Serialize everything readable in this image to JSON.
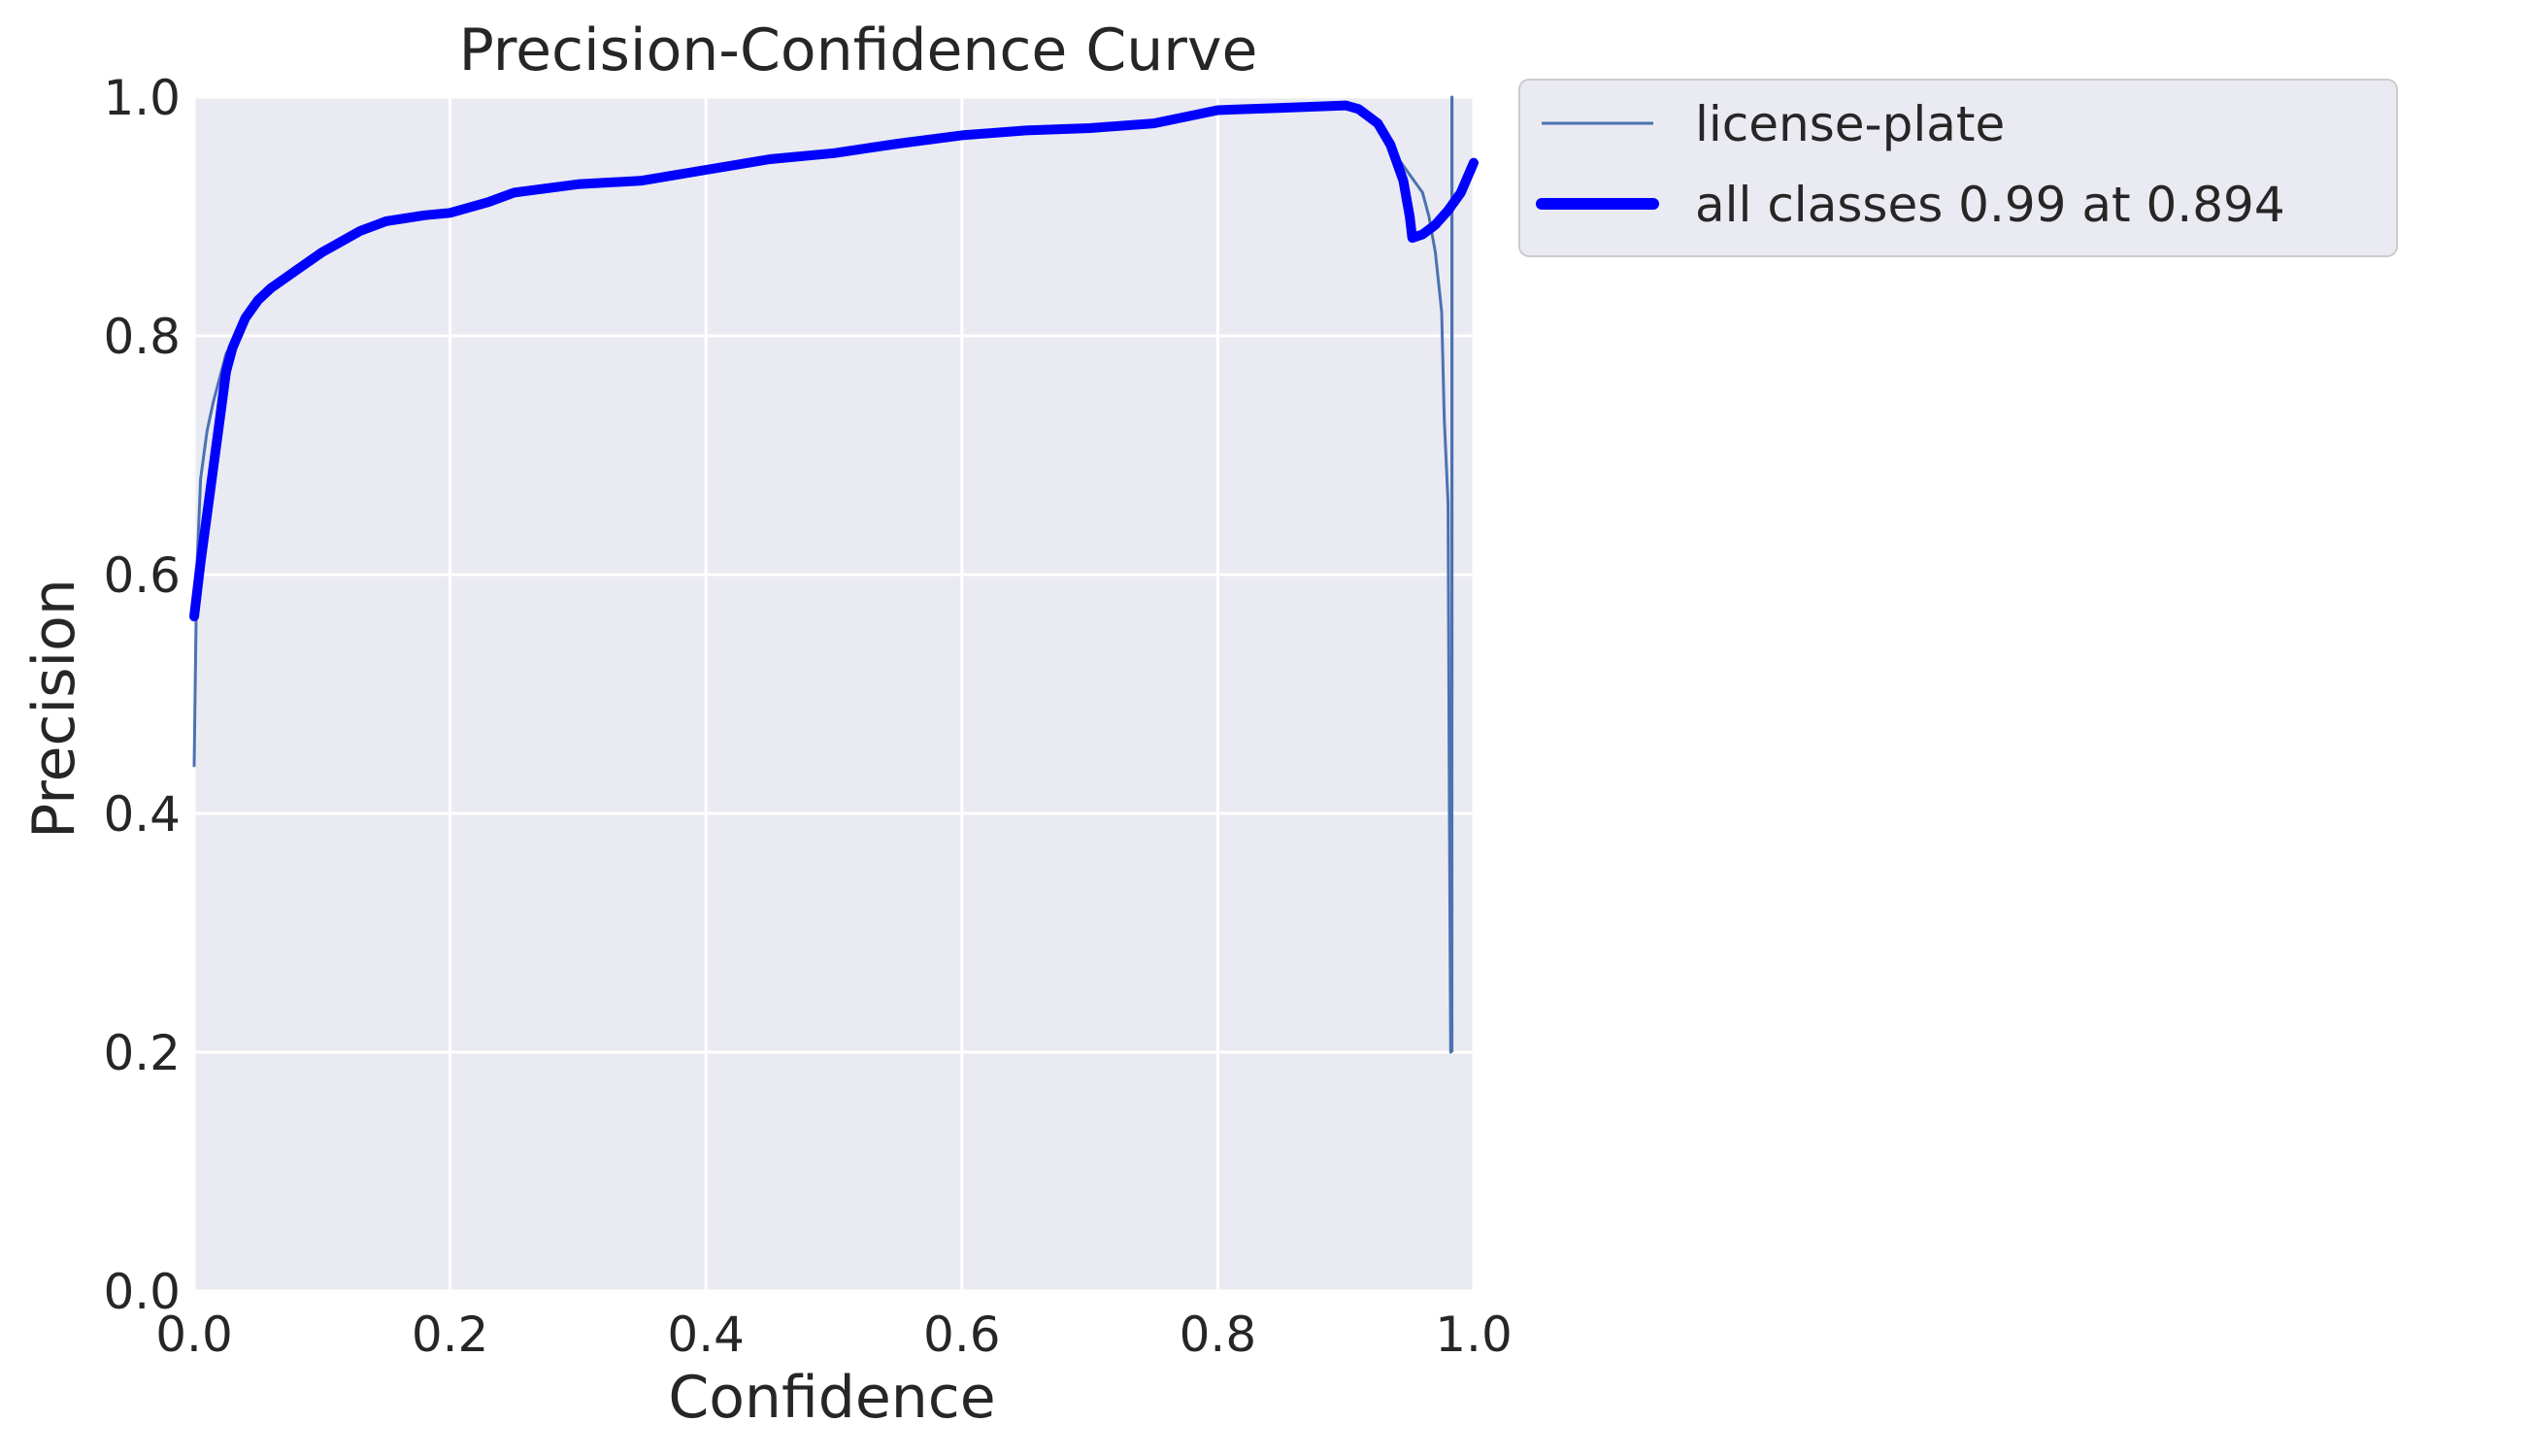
{
  "chart_data": {
    "type": "line",
    "title": "Precision-Confidence Curve",
    "xlabel": "Confidence",
    "ylabel": "Precision",
    "xlim": [
      0,
      1
    ],
    "ylim": [
      0,
      1
    ],
    "x_ticks": [
      "0.0",
      "0.2",
      "0.4",
      "0.6",
      "0.8",
      "1.0"
    ],
    "y_ticks": [
      "0.0",
      "0.2",
      "0.4",
      "0.6",
      "0.8",
      "1.0"
    ],
    "grid": true,
    "legend_position": "outside-top-right",
    "series": [
      {
        "name": "license-plate",
        "color": "#4c72b0",
        "style": "thin",
        "points": [
          [
            0.0,
            0.44
          ],
          [
            0.002,
            0.6
          ],
          [
            0.005,
            0.68
          ],
          [
            0.01,
            0.72
          ],
          [
            0.015,
            0.745
          ],
          [
            0.02,
            0.765
          ],
          [
            0.025,
            0.785
          ],
          [
            0.03,
            0.795
          ],
          [
            0.04,
            0.81
          ],
          [
            0.05,
            0.83
          ],
          [
            0.06,
            0.84
          ],
          [
            0.08,
            0.855
          ],
          [
            0.1,
            0.87
          ],
          [
            0.13,
            0.89
          ],
          [
            0.15,
            0.897
          ],
          [
            0.18,
            0.902
          ],
          [
            0.2,
            0.905
          ],
          [
            0.22,
            0.91
          ],
          [
            0.23,
            0.915
          ],
          [
            0.25,
            0.92
          ],
          [
            0.27,
            0.925
          ],
          [
            0.3,
            0.928
          ],
          [
            0.35,
            0.931
          ],
          [
            0.4,
            0.94
          ],
          [
            0.45,
            0.948
          ],
          [
            0.5,
            0.953
          ],
          [
            0.55,
            0.962
          ],
          [
            0.6,
            0.968
          ],
          [
            0.65,
            0.972
          ],
          [
            0.7,
            0.975
          ],
          [
            0.75,
            0.978
          ],
          [
            0.78,
            0.985
          ],
          [
            0.8,
            0.99
          ],
          [
            0.85,
            0.992
          ],
          [
            0.88,
            0.994
          ],
          [
            0.9,
            0.993
          ],
          [
            0.91,
            0.99
          ],
          [
            0.92,
            0.983
          ],
          [
            0.93,
            0.97
          ],
          [
            0.94,
            0.95
          ],
          [
            0.95,
            0.935
          ],
          [
            0.96,
            0.92
          ],
          [
            0.965,
            0.9
          ],
          [
            0.97,
            0.87
          ],
          [
            0.975,
            0.82
          ],
          [
            0.977,
            0.73
          ],
          [
            0.98,
            0.66
          ],
          [
            0.981,
            0.4
          ],
          [
            0.982,
            0.2
          ],
          [
            0.983,
            0.5
          ],
          [
            0.983,
            1.0
          ]
        ]
      },
      {
        "name": "all classes 0.99 at 0.894",
        "color": "#0000ff",
        "style": "thick",
        "points": [
          [
            0.0,
            0.565
          ],
          [
            0.005,
            0.61
          ],
          [
            0.01,
            0.65
          ],
          [
            0.015,
            0.69
          ],
          [
            0.02,
            0.73
          ],
          [
            0.025,
            0.77
          ],
          [
            0.03,
            0.79
          ],
          [
            0.04,
            0.815
          ],
          [
            0.05,
            0.83
          ],
          [
            0.06,
            0.84
          ],
          [
            0.08,
            0.855
          ],
          [
            0.1,
            0.87
          ],
          [
            0.13,
            0.888
          ],
          [
            0.15,
            0.896
          ],
          [
            0.18,
            0.901
          ],
          [
            0.2,
            0.903
          ],
          [
            0.23,
            0.912
          ],
          [
            0.25,
            0.92
          ],
          [
            0.3,
            0.927
          ],
          [
            0.35,
            0.93
          ],
          [
            0.4,
            0.939
          ],
          [
            0.45,
            0.948
          ],
          [
            0.5,
            0.953
          ],
          [
            0.55,
            0.961
          ],
          [
            0.6,
            0.968
          ],
          [
            0.65,
            0.972
          ],
          [
            0.7,
            0.974
          ],
          [
            0.75,
            0.978
          ],
          [
            0.8,
            0.989
          ],
          [
            0.85,
            0.991
          ],
          [
            0.9,
            0.993
          ],
          [
            0.91,
            0.99
          ],
          [
            0.925,
            0.978
          ],
          [
            0.935,
            0.96
          ],
          [
            0.945,
            0.93
          ],
          [
            0.95,
            0.9
          ],
          [
            0.952,
            0.882
          ],
          [
            0.96,
            0.885
          ],
          [
            0.97,
            0.893
          ],
          [
            0.98,
            0.905
          ],
          [
            0.99,
            0.92
          ],
          [
            1.0,
            0.945
          ]
        ]
      }
    ],
    "vertical_line_x": 0.983
  }
}
